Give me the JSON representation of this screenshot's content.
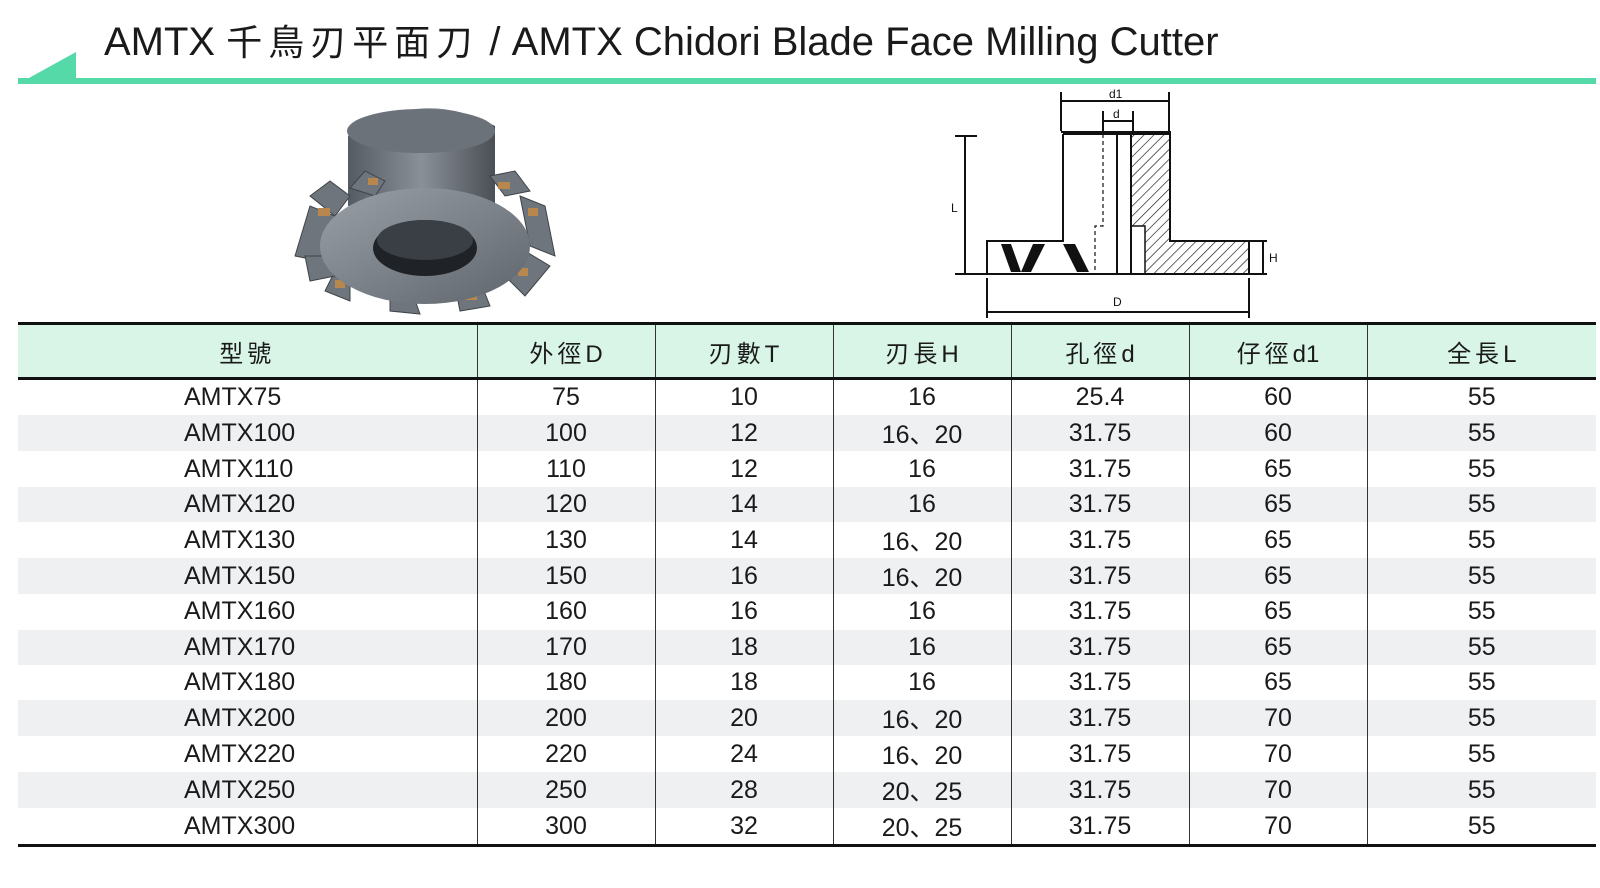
{
  "title": {
    "model": "AMTX",
    "cjk": "千鳥刃平面刀",
    "separator": "/",
    "english": "AMTX Chidori Blade Face Milling Cutter"
  },
  "diagram_labels": {
    "d1": "d1",
    "d": "d",
    "L": "L",
    "H": "H",
    "D": "D"
  },
  "table": {
    "headers": [
      {
        "cjk": "型號",
        "sym": ""
      },
      {
        "cjk": "外徑",
        "sym": "D"
      },
      {
        "cjk": "刃數",
        "sym": "T"
      },
      {
        "cjk": "刃長",
        "sym": "H"
      },
      {
        "cjk": "孔徑",
        "sym": "d"
      },
      {
        "cjk": "仔徑",
        "sym": "d1"
      },
      {
        "cjk": "全長",
        "sym": "L"
      }
    ],
    "rows": [
      [
        "AMTX75",
        "75",
        "10",
        "16",
        "25.4",
        "60",
        "55"
      ],
      [
        "AMTX100",
        "100",
        "12",
        "16、20",
        "31.75",
        "60",
        "55"
      ],
      [
        "AMTX110",
        "110",
        "12",
        "16",
        "31.75",
        "65",
        "55"
      ],
      [
        "AMTX120",
        "120",
        "14",
        "16",
        "31.75",
        "65",
        "55"
      ],
      [
        "AMTX130",
        "130",
        "14",
        "16、20",
        "31.75",
        "65",
        "55"
      ],
      [
        "AMTX150",
        "150",
        "16",
        "16、20",
        "31.75",
        "65",
        "55"
      ],
      [
        "AMTX160",
        "160",
        "16",
        "16",
        "31.75",
        "65",
        "55"
      ],
      [
        "AMTX170",
        "170",
        "18",
        "16",
        "31.75",
        "65",
        "55"
      ],
      [
        "AMTX180",
        "180",
        "18",
        "16",
        "31.75",
        "65",
        "55"
      ],
      [
        "AMTX200",
        "200",
        "20",
        "16、20",
        "31.75",
        "70",
        "55"
      ],
      [
        "AMTX220",
        "220",
        "24",
        "16、20",
        "31.75",
        "70",
        "55"
      ],
      [
        "AMTX250",
        "250",
        "28",
        "20、25",
        "31.75",
        "70",
        "55"
      ],
      [
        "AMTX300",
        "300",
        "32",
        "20、25",
        "31.75",
        "70",
        "55"
      ]
    ]
  },
  "colors": {
    "accent": "#55d9a8",
    "header_bg": "#d8f5e8",
    "row_alt": "#eef0f2"
  }
}
